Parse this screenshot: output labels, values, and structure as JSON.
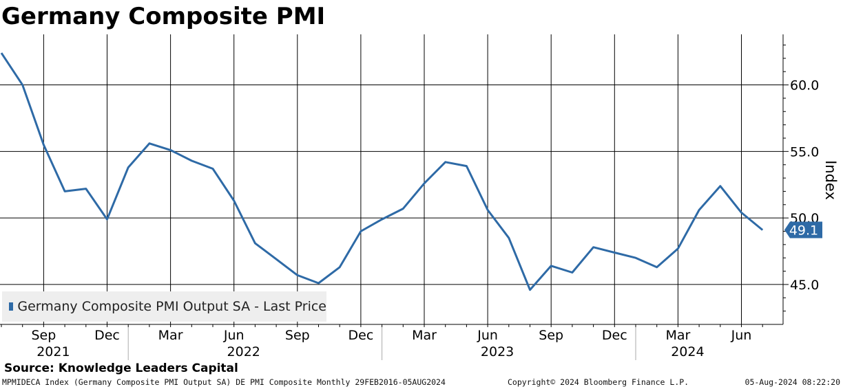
{
  "header": {
    "title": "Germany Composite PMI"
  },
  "chart_data": {
    "type": "line",
    "title": "Germany Composite PMI",
    "ylabel": "Index",
    "xlabel": "",
    "ylim": [
      42.0,
      63.8
    ],
    "y_ticks": [
      45.0,
      50.0,
      55.0,
      60.0
    ],
    "y_tick_labels": [
      "45.0",
      "50.0",
      "55.0",
      "60.0"
    ],
    "x_tick_labels": [
      {
        "label": "Sep",
        "date": "2021-09"
      },
      {
        "label": "Dec",
        "date": "2021-12"
      },
      {
        "label": "Mar",
        "date": "2022-03"
      },
      {
        "label": "Jun",
        "date": "2022-06"
      },
      {
        "label": "Sep",
        "date": "2022-09"
      },
      {
        "label": "Dec",
        "date": "2022-12"
      },
      {
        "label": "Mar",
        "date": "2023-03"
      },
      {
        "label": "Jun",
        "date": "2023-06"
      },
      {
        "label": "Sep",
        "date": "2023-09"
      },
      {
        "label": "Dec",
        "date": "2023-12"
      },
      {
        "label": "Mar",
        "date": "2024-03"
      },
      {
        "label": "Jun",
        "date": "2024-06"
      }
    ],
    "year_labels": [
      {
        "label": "2021",
        "date": "2021-09"
      },
      {
        "label": "2022",
        "date": "2022-06"
      },
      {
        "label": "2023",
        "date": "2023-06"
      },
      {
        "label": "2024",
        "date": "2024-03"
      }
    ],
    "year_separators": [
      "2022-01",
      "2023-01",
      "2024-01"
    ],
    "grid": true,
    "legend": "bottom-left",
    "series": [
      {
        "name": "Germany Composite PMI Output SA - Last Price",
        "color": "#2e6aa6",
        "x": [
          "2021-07",
          "2021-08",
          "2021-09",
          "2021-10",
          "2021-11",
          "2021-12",
          "2022-01",
          "2022-02",
          "2022-03",
          "2022-04",
          "2022-05",
          "2022-06",
          "2022-07",
          "2022-08",
          "2022-09",
          "2022-10",
          "2022-11",
          "2022-12",
          "2023-01",
          "2023-02",
          "2023-03",
          "2023-04",
          "2023-05",
          "2023-06",
          "2023-07",
          "2023-08",
          "2023-09",
          "2023-10",
          "2023-11",
          "2023-12",
          "2024-01",
          "2024-02",
          "2024-03",
          "2024-04",
          "2024-05",
          "2024-06",
          "2024-07"
        ],
        "values": [
          62.4,
          60.0,
          55.5,
          52.0,
          52.2,
          49.9,
          53.8,
          55.6,
          55.1,
          54.3,
          53.7,
          51.3,
          48.1,
          46.9,
          45.7,
          45.1,
          46.3,
          49.0,
          49.9,
          50.7,
          52.6,
          54.2,
          53.9,
          50.6,
          48.5,
          44.6,
          46.4,
          45.9,
          47.8,
          47.4,
          47.0,
          46.3,
          47.7,
          50.6,
          52.4,
          50.4,
          49.1
        ]
      }
    ],
    "last_value_label": "49.1"
  },
  "legend": {
    "label": "Germany Composite PMI Output SA - Last Price",
    "color": "#2e6aa6"
  },
  "source": {
    "text": "Source: Knowledge Leaders Capital"
  },
  "footer": {
    "left": "MPMIDECA Index (Germany Composite PMI Output SA) DE PMI Composite  Monthly 29FEB2016-05AUG2024",
    "center": "Copyright© 2024 Bloomberg Finance L.P.",
    "right": "05-Aug-2024 08:22:20"
  },
  "colors": {
    "line": "#2e6aa6",
    "grid": "#000000",
    "legend_bg": "#eeeeee"
  }
}
